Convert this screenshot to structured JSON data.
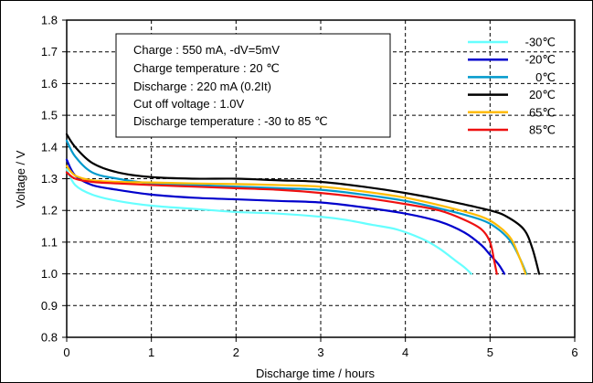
{
  "chart_data": {
    "type": "line",
    "title": "",
    "xlabel": "Discharge time / hours",
    "ylabel": "Voltage / V",
    "xlim": [
      0,
      6
    ],
    "ylim": [
      0.8,
      1.8
    ],
    "x_ticks": [
      "0",
      "1",
      "2",
      "3",
      "4",
      "5",
      "6"
    ],
    "y_ticks": [
      "0.8",
      "0.9",
      "1.0",
      "1.1",
      "1.2",
      "1.3",
      "1.4",
      "1.5",
      "1.6",
      "1.7",
      "1.8"
    ],
    "grid": true,
    "legend_position": "top-right",
    "info_box": [
      "Charge : 550 mA, -dV=5mV",
      "Charge temperature : 20 ℃",
      "Discharge : 220 mA (0.2It)",
      "Cut off voltage : 1.0V",
      "Discharge temperature : -30 to 85 ℃"
    ],
    "series": [
      {
        "name": "-30℃",
        "color": "#66ffff",
        "points": [
          [
            0,
            1.33
          ],
          [
            0.1,
            1.28
          ],
          [
            0.3,
            1.25
          ],
          [
            0.6,
            1.23
          ],
          [
            1.0,
            1.215
          ],
          [
            1.5,
            1.205
          ],
          [
            2.0,
            1.195
          ],
          [
            2.5,
            1.19
          ],
          [
            3.0,
            1.18
          ],
          [
            3.3,
            1.17
          ],
          [
            3.6,
            1.155
          ],
          [
            3.9,
            1.14
          ],
          [
            4.2,
            1.11
          ],
          [
            4.4,
            1.08
          ],
          [
            4.6,
            1.04
          ],
          [
            4.7,
            1.02
          ],
          [
            4.78,
            1.0
          ]
        ]
      },
      {
        "name": "-20℃",
        "color": "#0000cc",
        "points": [
          [
            0,
            1.36
          ],
          [
            0.1,
            1.31
          ],
          [
            0.3,
            1.28
          ],
          [
            0.6,
            1.265
          ],
          [
            1.0,
            1.25
          ],
          [
            1.5,
            1.24
          ],
          [
            2.0,
            1.235
          ],
          [
            2.5,
            1.23
          ],
          [
            3.0,
            1.225
          ],
          [
            3.5,
            1.21
          ],
          [
            4.0,
            1.19
          ],
          [
            4.4,
            1.165
          ],
          [
            4.7,
            1.13
          ],
          [
            4.9,
            1.09
          ],
          [
            5.0,
            1.06
          ],
          [
            5.1,
            1.03
          ],
          [
            5.17,
            1.0
          ]
        ]
      },
      {
        "name": "0℃",
        "color": "#0099cc",
        "points": [
          [
            0,
            1.42
          ],
          [
            0.1,
            1.37
          ],
          [
            0.3,
            1.32
          ],
          [
            0.6,
            1.3
          ],
          [
            1.0,
            1.285
          ],
          [
            1.5,
            1.28
          ],
          [
            2.0,
            1.275
          ],
          [
            2.5,
            1.27
          ],
          [
            3.0,
            1.265
          ],
          [
            3.5,
            1.25
          ],
          [
            4.0,
            1.23
          ],
          [
            4.5,
            1.2
          ],
          [
            4.9,
            1.17
          ],
          [
            5.1,
            1.14
          ],
          [
            5.25,
            1.1
          ],
          [
            5.35,
            1.05
          ],
          [
            5.43,
            1.0
          ]
        ]
      },
      {
        "name": "20℃",
        "color": "#000000",
        "points": [
          [
            0,
            1.44
          ],
          [
            0.1,
            1.4
          ],
          [
            0.3,
            1.35
          ],
          [
            0.6,
            1.32
          ],
          [
            1.0,
            1.305
          ],
          [
            1.5,
            1.3
          ],
          [
            2.0,
            1.3
          ],
          [
            2.5,
            1.295
          ],
          [
            3.0,
            1.29
          ],
          [
            3.5,
            1.275
          ],
          [
            4.0,
            1.255
          ],
          [
            4.5,
            1.23
          ],
          [
            5.0,
            1.2
          ],
          [
            5.2,
            1.18
          ],
          [
            5.4,
            1.14
          ],
          [
            5.5,
            1.08
          ],
          [
            5.58,
            1.0
          ]
        ]
      },
      {
        "name": "65℃",
        "color": "#ffbb00",
        "points": [
          [
            0,
            1.34
          ],
          [
            0.1,
            1.31
          ],
          [
            0.3,
            1.295
          ],
          [
            0.6,
            1.29
          ],
          [
            1.0,
            1.288
          ],
          [
            1.5,
            1.285
          ],
          [
            2.0,
            1.283
          ],
          [
            2.5,
            1.28
          ],
          [
            3.0,
            1.275
          ],
          [
            3.5,
            1.26
          ],
          [
            4.0,
            1.24
          ],
          [
            4.5,
            1.21
          ],
          [
            4.9,
            1.18
          ],
          [
            5.1,
            1.15
          ],
          [
            5.25,
            1.11
          ],
          [
            5.35,
            1.05
          ],
          [
            5.42,
            1.0
          ]
        ]
      },
      {
        "name": "85℃",
        "color": "#ee1111",
        "points": [
          [
            0,
            1.32
          ],
          [
            0.1,
            1.3
          ],
          [
            0.3,
            1.29
          ],
          [
            0.6,
            1.285
          ],
          [
            1.0,
            1.28
          ],
          [
            1.5,
            1.275
          ],
          [
            2.0,
            1.27
          ],
          [
            2.5,
            1.265
          ],
          [
            3.0,
            1.255
          ],
          [
            3.5,
            1.24
          ],
          [
            4.0,
            1.22
          ],
          [
            4.4,
            1.2
          ],
          [
            4.7,
            1.17
          ],
          [
            4.9,
            1.14
          ],
          [
            5.0,
            1.1
          ],
          [
            5.05,
            1.04
          ],
          [
            5.08,
            1.0
          ]
        ]
      }
    ]
  }
}
